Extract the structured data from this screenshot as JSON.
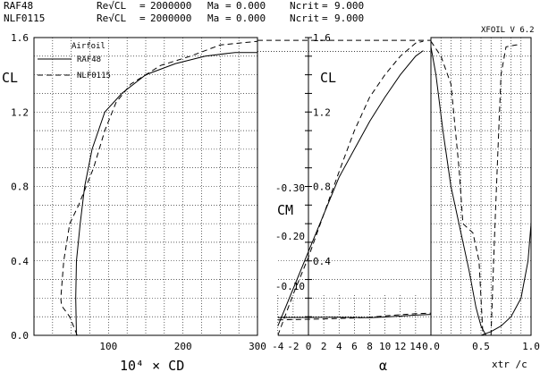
{
  "header": {
    "airfoils": [
      {
        "name": "RAF48",
        "params": [
          {
            "label": "Re√CL",
            "value": "2000000"
          },
          {
            "label": "Ma",
            "value": "0.000"
          },
          {
            "label": "Ncrit",
            "value": "9.000"
          }
        ]
      },
      {
        "name": "NLF0115",
        "params": [
          {
            "label": "Re√CL",
            "value": "2000000"
          },
          {
            "label": "Ma",
            "value": "0.000"
          },
          {
            "label": "Ncrit",
            "value": "9.000"
          }
        ]
      }
    ],
    "version": "XFOIL V 6.2"
  },
  "legend": {
    "title": "Airfoil",
    "entries": [
      {
        "name": "RAF48",
        "style": "solid"
      },
      {
        "name": "NLF0115",
        "style": "dashed"
      }
    ]
  },
  "chart_data": [
    {
      "type": "line",
      "panel": "drag-polar",
      "xlabel": "10⁴ × CD",
      "ylabel": "CL",
      "xlim": [
        0,
        300
      ],
      "ylim": [
        0.0,
        1.6
      ],
      "xticks": [
        "100",
        "200",
        "300"
      ],
      "yticks": [
        "0.0",
        "0.4",
        "0.8",
        "1.2",
        "1.6"
      ],
      "grid": true,
      "series": [
        {
          "name": "RAF48",
          "style": "solid",
          "points": [
            [
              57,
              0.0
            ],
            [
              56,
              0.2
            ],
            [
              57,
              0.4
            ],
            [
              62,
              0.6
            ],
            [
              68,
              0.8
            ],
            [
              78,
              1.0
            ],
            [
              95,
              1.2
            ],
            [
              118,
              1.3
            ],
            [
              150,
              1.4
            ],
            [
              190,
              1.46
            ],
            [
              230,
              1.5
            ],
            [
              270,
              1.52
            ],
            [
              300,
              1.52
            ]
          ]
        },
        {
          "name": "NLF0115",
          "style": "dashed",
          "points": [
            [
              58,
              0.0
            ],
            [
              48,
              0.1
            ],
            [
              37,
              0.16
            ],
            [
              36,
              0.2
            ],
            [
              40,
              0.4
            ],
            [
              48,
              0.6
            ],
            [
              60,
              0.7
            ],
            [
              80,
              0.9
            ],
            [
              95,
              1.1
            ],
            [
              110,
              1.25
            ],
            [
              130,
              1.35
            ],
            [
              170,
              1.45
            ],
            [
              210,
              1.5
            ],
            [
              250,
              1.56
            ],
            [
              300,
              1.58
            ]
          ]
        }
      ]
    },
    {
      "type": "line",
      "panel": "lift-moment-curve",
      "xlabel": "α",
      "ylabel": "CL",
      "ylabel2": "CM",
      "xlim": [
        -4,
        16
      ],
      "ylim": [
        0.0,
        1.6
      ],
      "cm_lim": [
        0.0,
        -0.35
      ],
      "xticks": [
        "-4",
        "-2",
        "0",
        "2",
        "4",
        "6",
        "8",
        "10",
        "12",
        "14"
      ],
      "yticks": [
        "0.4",
        "0.8",
        "1.2",
        "1.6"
      ],
      "cm_ticks": [
        "-0.10",
        "-0.20",
        "-0.30"
      ],
      "grid": true,
      "series": [
        {
          "name": "RAF48 CL",
          "style": "solid",
          "points": [
            [
              -4,
              0.05
            ],
            [
              -2,
              0.25
            ],
            [
              0,
              0.45
            ],
            [
              2,
              0.65
            ],
            [
              4,
              0.85
            ],
            [
              6,
              1.0
            ],
            [
              8,
              1.15
            ],
            [
              10,
              1.28
            ],
            [
              12,
              1.4
            ],
            [
              14,
              1.5
            ],
            [
              15,
              1.53
            ]
          ]
        },
        {
          "name": "NLF0115 CL",
          "style": "dashed",
          "points": [
            [
              -4,
              0.0
            ],
            [
              -2,
              0.22
            ],
            [
              0,
              0.42
            ],
            [
              2,
              0.65
            ],
            [
              4,
              0.88
            ],
            [
              6,
              1.1
            ],
            [
              8,
              1.28
            ],
            [
              10,
              1.4
            ],
            [
              12,
              1.5
            ],
            [
              14,
              1.57
            ],
            [
              15,
              1.58
            ]
          ]
        },
        {
          "name": "RAF48 CM",
          "style": "solid",
          "points": [
            [
              -4,
              -0.032
            ],
            [
              -2,
              -0.031
            ],
            [
              0,
              -0.031
            ],
            [
              2,
              -0.03
            ],
            [
              4,
              -0.03
            ],
            [
              6,
              -0.031
            ],
            [
              8,
              -0.033
            ],
            [
              10,
              -0.028
            ],
            [
              12,
              -0.022
            ],
            [
              14,
              -0.015
            ],
            [
              16,
              -0.01
            ]
          ]
        },
        {
          "name": "NLF0115 CM",
          "style": "dashed",
          "points": [
            [
              -4,
              -0.048
            ],
            [
              -2,
              -0.046
            ],
            [
              0,
              -0.044
            ],
            [
              2,
              -0.041
            ],
            [
              4,
              -0.038
            ],
            [
              6,
              -0.035
            ],
            [
              8,
              -0.03
            ],
            [
              10,
              -0.02
            ],
            [
              12,
              -0.012
            ],
            [
              14,
              -0.005
            ],
            [
              16,
              -0.001
            ]
          ]
        }
      ]
    },
    {
      "type": "line",
      "panel": "transition-location",
      "xlabel": "xtr /c",
      "ylabel": "CL",
      "xlim": [
        0.0,
        1.0
      ],
      "ylim": [
        0.0,
        1.6
      ],
      "xticks": [
        "0.0",
        "0.5",
        "1.0"
      ],
      "grid": true,
      "series": [
        {
          "name": "RAF48 upper",
          "style": "solid",
          "points": [
            [
              0.0,
              1.55
            ],
            [
              0.05,
              1.4
            ],
            [
              0.12,
              1.1
            ],
            [
              0.2,
              0.8
            ],
            [
              0.3,
              0.55
            ],
            [
              0.38,
              0.35
            ],
            [
              0.45,
              0.15
            ],
            [
              0.5,
              0.05
            ],
            [
              0.55,
              0.0
            ]
          ]
        },
        {
          "name": "RAF48 lower",
          "style": "solid",
          "points": [
            [
              0.5,
              0.0
            ],
            [
              0.6,
              0.02
            ],
            [
              0.7,
              0.05
            ],
            [
              0.8,
              0.1
            ],
            [
              0.9,
              0.2
            ],
            [
              0.97,
              0.4
            ],
            [
              1.0,
              0.6
            ],
            [
              1.0,
              1.1
            ]
          ]
        },
        {
          "name": "NLF0115 upper",
          "style": "dashed",
          "points": [
            [
              0.0,
              1.58
            ],
            [
              0.1,
              1.5
            ],
            [
              0.2,
              1.35
            ],
            [
              0.28,
              0.9
            ],
            [
              0.32,
              0.6
            ],
            [
              0.42,
              0.55
            ],
            [
              0.48,
              0.4
            ],
            [
              0.5,
              0.2
            ],
            [
              0.52,
              0.0
            ]
          ]
        },
        {
          "name": "NLF0115 lower",
          "style": "dashed",
          "points": [
            [
              0.6,
              0.0
            ],
            [
              0.62,
              0.3
            ],
            [
              0.64,
              0.6
            ],
            [
              0.67,
              1.0
            ],
            [
              0.7,
              1.4
            ],
            [
              0.75,
              1.55
            ],
            [
              0.85,
              1.56
            ],
            [
              0.9,
              1.56
            ]
          ]
        }
      ]
    }
  ]
}
